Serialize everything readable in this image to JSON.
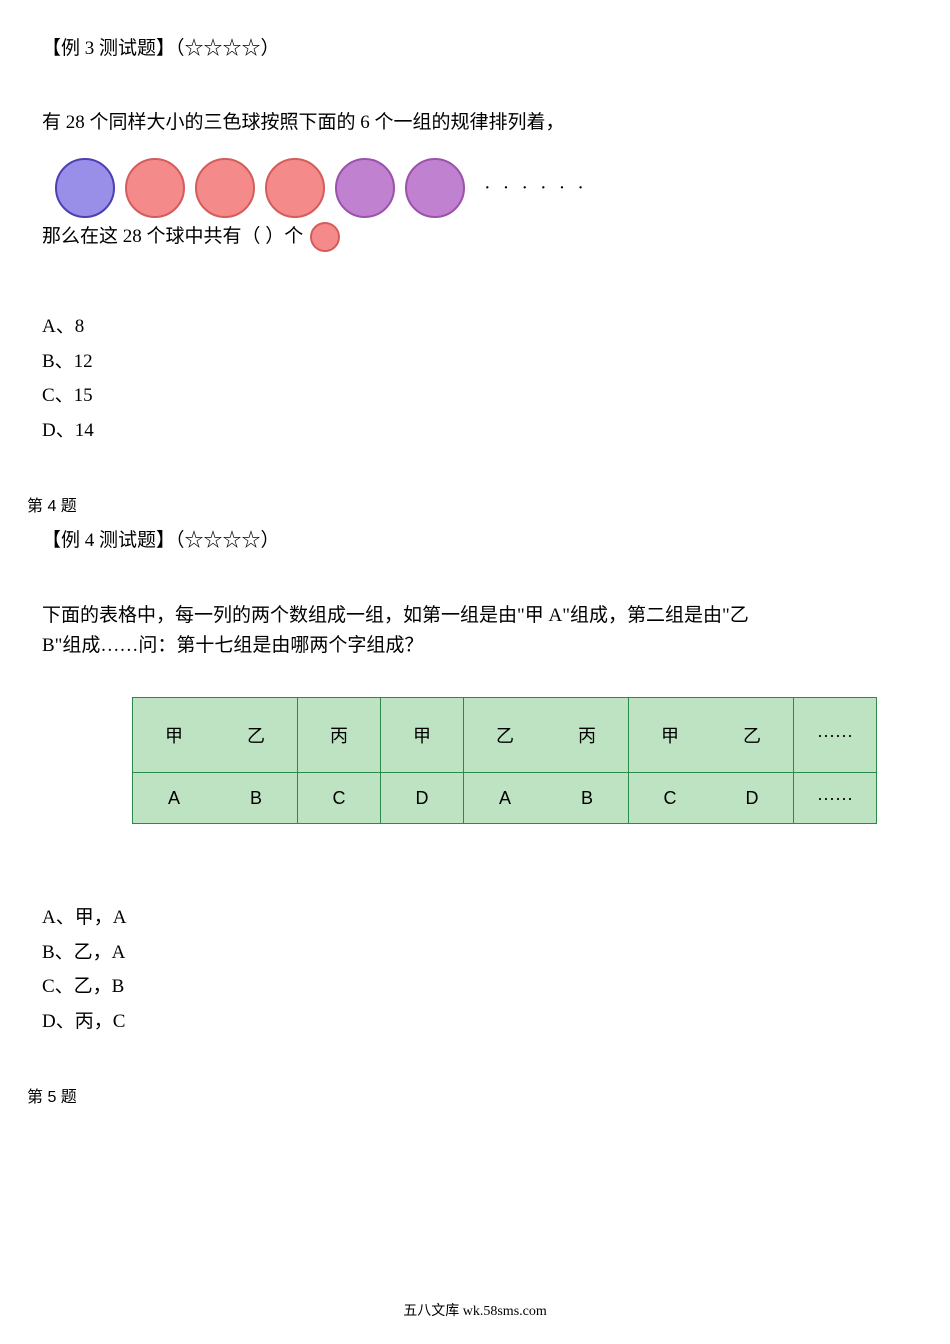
{
  "q3": {
    "title": "【例 3 测试题】（☆☆☆☆）",
    "body1": "有 28 个同样大小的三色球按照下面的 6 个一组的规律排列着，",
    "balls": {
      "items": [
        {
          "fill": "#9a8fe8",
          "stroke": "#4b3fb3"
        },
        {
          "fill": "#f48a8a",
          "stroke": "#d45c5c"
        },
        {
          "fill": "#f48a8a",
          "stroke": "#d45c5c"
        },
        {
          "fill": "#f48a8a",
          "stroke": "#d45c5c"
        },
        {
          "fill": "#c181d1",
          "stroke": "#9a52ab"
        },
        {
          "fill": "#c181d1",
          "stroke": "#9a52ab"
        }
      ],
      "radius": 29,
      "trailing_dots": "······"
    },
    "body2_text": "那么在这 28 个球中共有（  ）个",
    "small_ball": {
      "fill": "#f48a8a",
      "stroke": "#d45c5c",
      "radius": 14
    },
    "options": {
      "a": "A、8",
      "b": "B、12",
      "c": "C、15",
      "d": "D、14"
    }
  },
  "q4": {
    "section_label": "第 4 题",
    "title": "【例 4 测试题】（☆☆☆☆）",
    "body_l1": "下面的表格中，每一列的两个数组成一组，如第一组是由\"甲 A\"组成，第二组是由\"乙",
    "body_l2": "B\"组成……问：第十七组是由哪两个字组成？",
    "table": {
      "bg": "#bde3c3",
      "border": "#2a8a4a",
      "row1": [
        "甲",
        "乙",
        "丙",
        "甲",
        "乙",
        "丙",
        "甲",
        "乙",
        "······"
      ],
      "row2": [
        "A",
        "B",
        "C",
        "D",
        "A",
        "B",
        "C",
        "D",
        "······"
      ],
      "nr_after": [
        0,
        4,
        6
      ],
      "row1_height": 72,
      "row2_height": 48
    },
    "options": {
      "a": "A、甲，A",
      "b": "B、乙，A",
      "c": "C、乙，B",
      "d": "D、丙，C"
    }
  },
  "q5": {
    "section_label": "第 5 题"
  },
  "footer": "五八文库 wk.58sms.com"
}
